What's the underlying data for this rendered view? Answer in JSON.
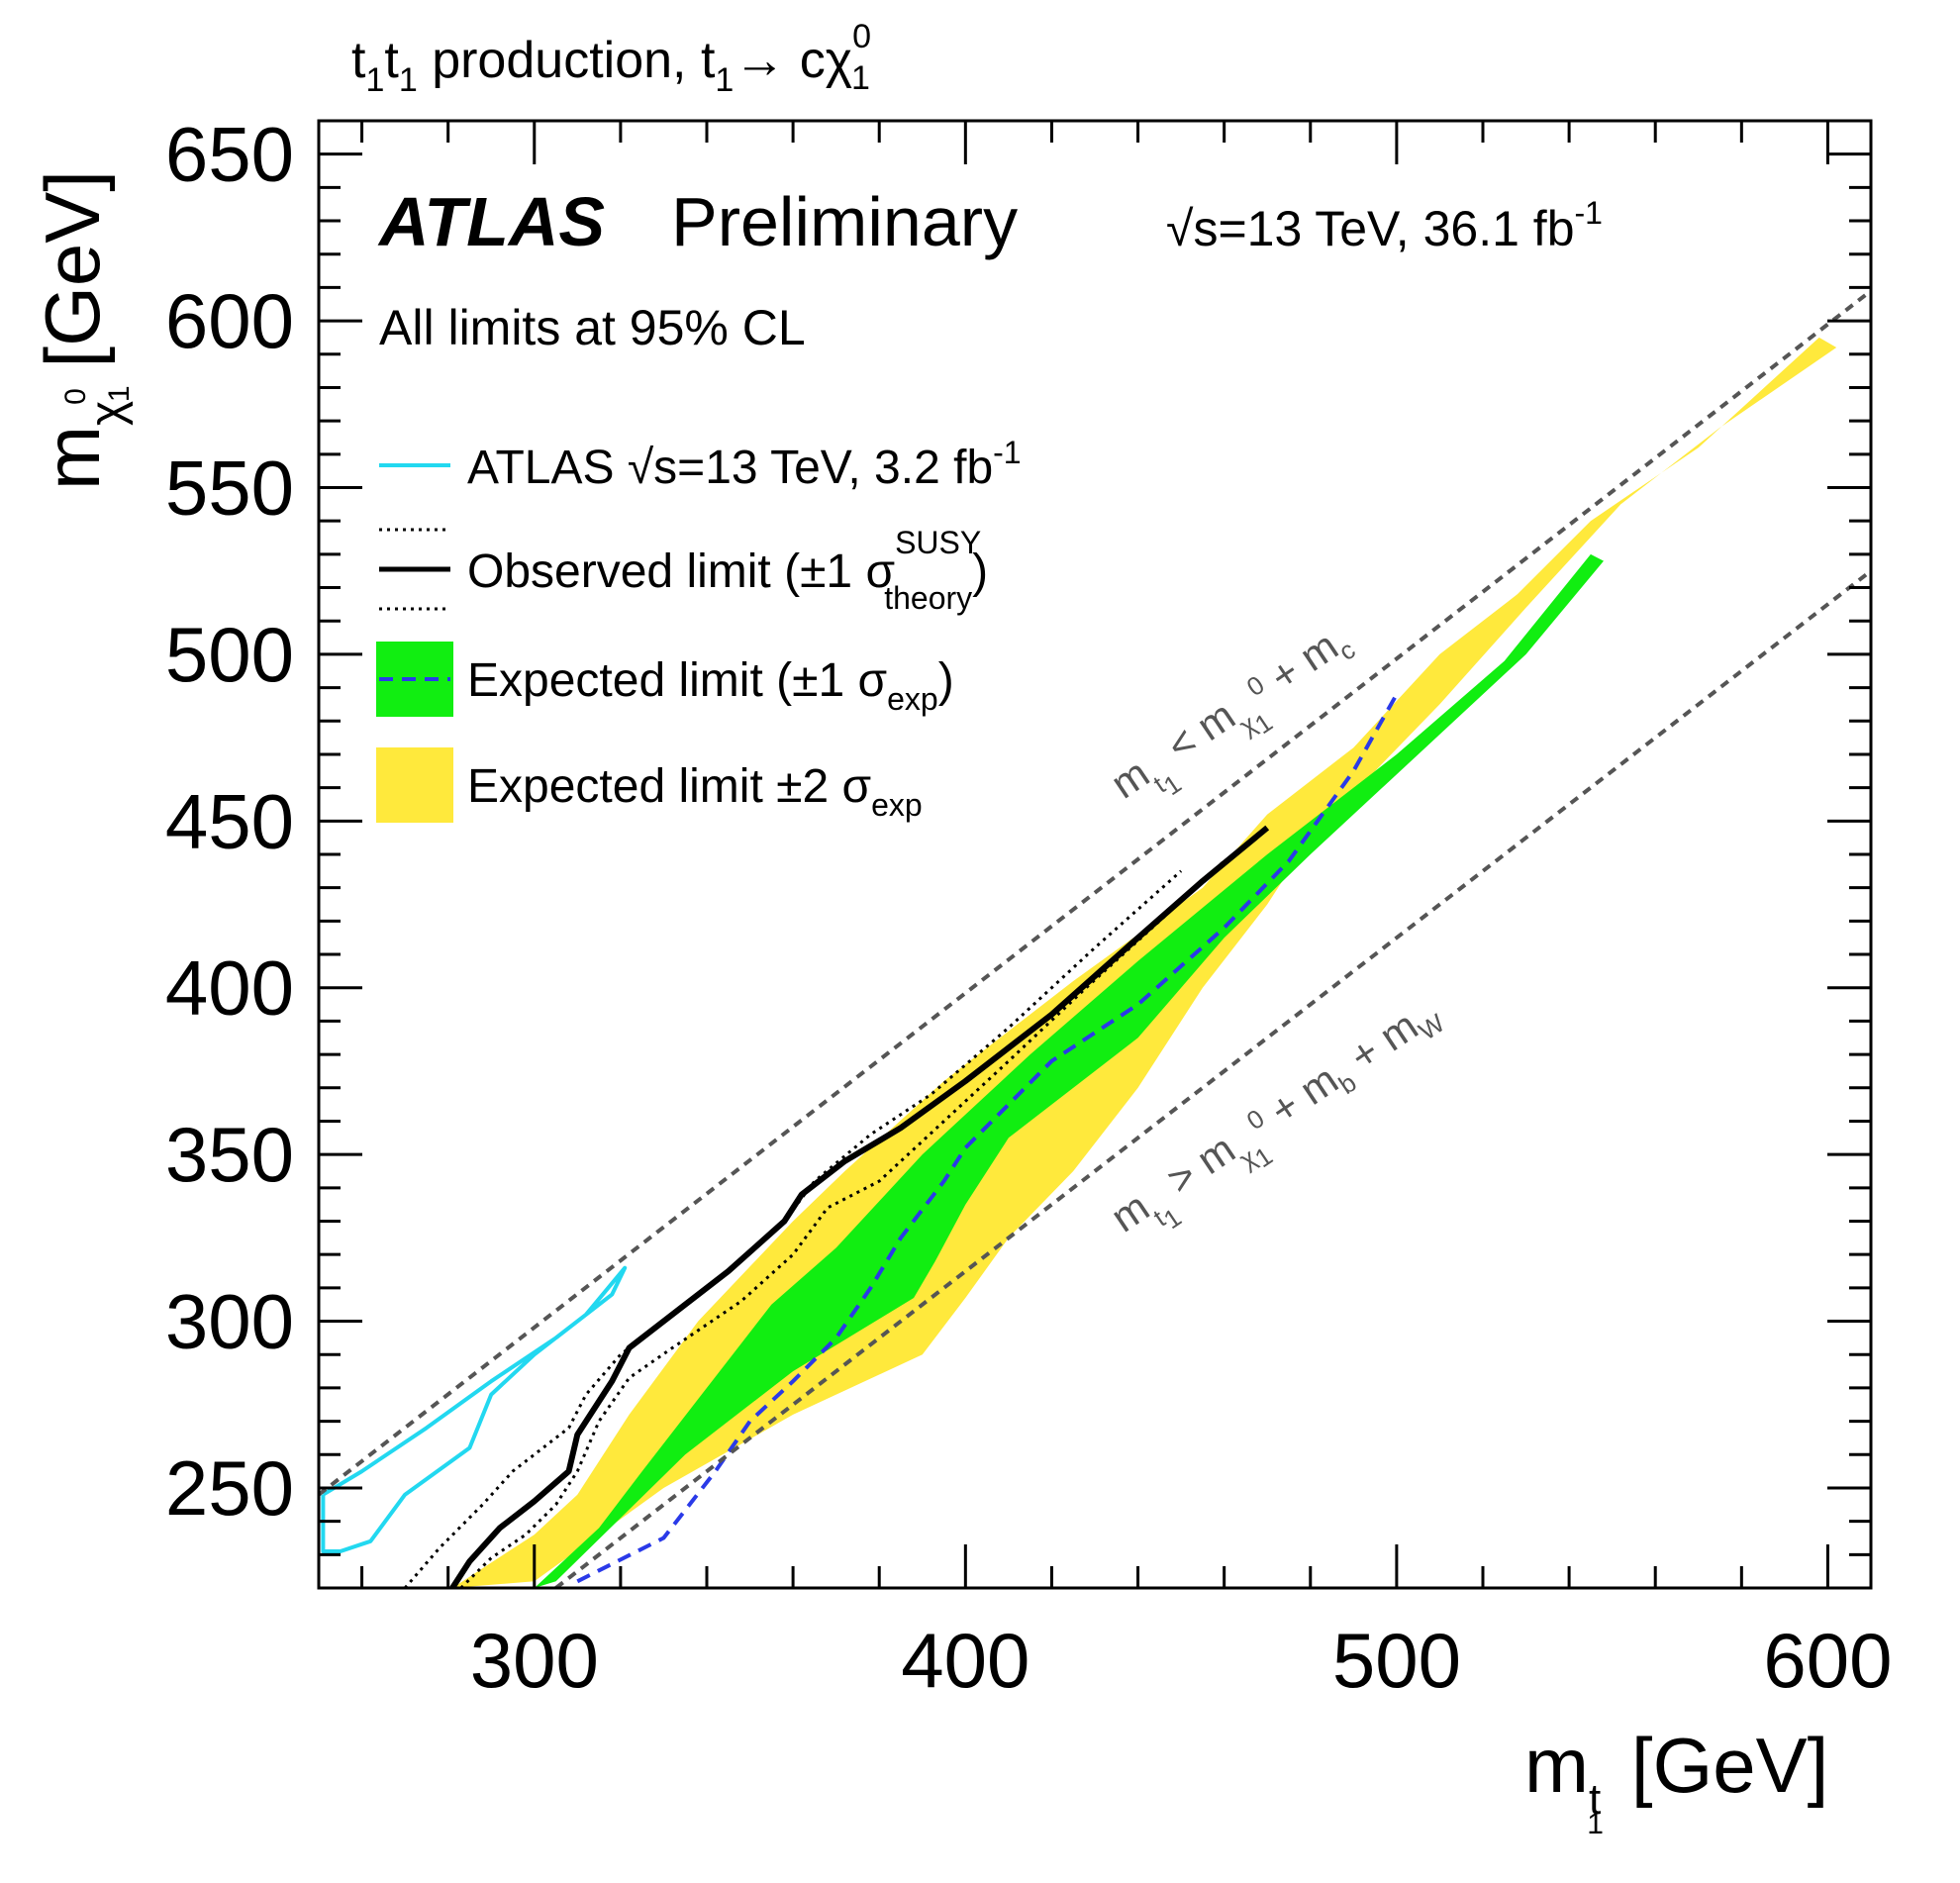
{
  "header": {
    "title_a": "t",
    "title_b": "1",
    "title_c": "t",
    "title_d": "1",
    "title_e": " production, ",
    "title_f": "t",
    "title_g": "1",
    "title_h": "→ c",
    "title_i": "χ",
    "title_j": "0",
    "title_k": "1"
  },
  "labels": {
    "atlas": "ATLAS",
    "preliminary": "Preliminary",
    "energy_a": "√s=13 TeV, 36.1 fb",
    "energy_b": "-1",
    "cl": "All limits at 95% CL",
    "x_m": "m",
    "x_sub": "t",
    "x_sub2": "1",
    "x_unit": "[GeV]",
    "y_m": "m",
    "y_sub": "χ",
    "y_sub2": "1",
    "y_sup": "0",
    "y_unit": "[GeV]"
  },
  "legend": {
    "atlas_prev_a": "ATLAS √s=13 TeV, 3.2 fb",
    "atlas_prev_b": "-1",
    "observed_a": "Observed limit (±1 σ",
    "observed_sup": "SUSY",
    "observed_sub": "theory",
    "observed_b": ")",
    "expected_a": "Expected limit (±1 σ",
    "expected_sub": "exp",
    "expected_b": ")",
    "expected2_a": "Expected limit ±2 σ",
    "expected2_sub": "exp"
  },
  "annotations": {
    "upper_a": "m",
    "upper_b": "t",
    "upper_c": "1",
    "upper_d": " < m",
    "upper_e": "χ",
    "upper_f": "1",
    "upper_g": "0",
    "upper_h": " + m",
    "upper_i": "c",
    "lower_a": "m",
    "lower_b": "t",
    "lower_c": "1",
    "lower_d": " > m",
    "lower_e": "χ",
    "lower_f": "1",
    "lower_g": "0",
    "lower_h": " + m",
    "lower_i": "b",
    "lower_j": " + m",
    "lower_k": "W"
  },
  "colors": {
    "cyan": "#22d8f0",
    "green": "#11ee11",
    "yellow": "#ffe93c",
    "expected_line": "#2a3ae8",
    "kinematic_line": "#555555",
    "text": "#000000"
  },
  "chart_data": {
    "type": "line",
    "xlabel": "m_t1 [GeV]",
    "ylabel": "m_chi1^0 [GeV]",
    "xlim": [
      250,
      610
    ],
    "ylim": [
      220,
      660
    ],
    "xticks": [
      300,
      400,
      500,
      600
    ],
    "yticks": [
      250,
      300,
      350,
      400,
      450,
      500,
      550,
      600,
      650
    ],
    "yellow_band": [
      [
        281,
        220
      ],
      [
        300,
        236
      ],
      [
        310,
        248
      ],
      [
        322,
        272
      ],
      [
        338,
        300
      ],
      [
        360,
        330
      ],
      [
        372,
        345
      ],
      [
        395,
        372
      ],
      [
        425,
        402
      ],
      [
        455,
        430
      ],
      [
        470,
        452
      ],
      [
        490,
        472
      ],
      [
        510,
        500
      ],
      [
        528,
        518
      ],
      [
        545,
        540
      ],
      [
        570,
        562
      ],
      [
        598,
        595
      ],
      [
        602,
        592
      ],
      [
        575,
        568
      ],
      [
        552,
        545
      ],
      [
        530,
        514
      ],
      [
        510,
        485
      ],
      [
        480,
        445
      ],
      [
        470,
        425
      ],
      [
        455,
        400
      ],
      [
        440,
        370
      ],
      [
        425,
        345
      ],
      [
        410,
        325
      ],
      [
        400,
        307
      ],
      [
        390,
        290
      ],
      [
        360,
        272
      ],
      [
        330,
        250
      ],
      [
        300,
        222
      ]
    ],
    "green_band": [
      [
        300,
        220
      ],
      [
        315,
        238
      ],
      [
        325,
        255
      ],
      [
        340,
        280
      ],
      [
        355,
        305
      ],
      [
        370,
        322
      ],
      [
        390,
        350
      ],
      [
        415,
        380
      ],
      [
        440,
        408
      ],
      [
        470,
        440
      ],
      [
        500,
        470
      ],
      [
        525,
        498
      ],
      [
        545,
        530
      ],
      [
        548,
        528
      ],
      [
        530,
        500
      ],
      [
        505,
        470
      ],
      [
        480,
        440
      ],
      [
        460,
        415
      ],
      [
        440,
        385
      ],
      [
        410,
        355
      ],
      [
        400,
        335
      ],
      [
        393,
        318
      ],
      [
        388,
        307
      ],
      [
        360,
        285
      ],
      [
        335,
        260
      ],
      [
        305,
        222
      ]
    ],
    "series": [
      {
        "name": "ATLAS √s=13 TeV, 3.2 fb-1",
        "points": [
          [
            251,
            248
          ],
          [
            260,
            255
          ],
          [
            275,
            268
          ],
          [
            290,
            282
          ],
          [
            305,
            295
          ],
          [
            318,
            308
          ],
          [
            321,
            316
          ],
          [
            312,
            302
          ],
          [
            300,
            290
          ],
          [
            290,
            278
          ],
          [
            285,
            262
          ],
          [
            270,
            248
          ],
          [
            262,
            234
          ],
          [
            255,
            231
          ],
          [
            251,
            231
          ],
          [
            251,
            248
          ]
        ]
      },
      {
        "name": "Observed limit",
        "points": [
          [
            281,
            220
          ],
          [
            285,
            228
          ],
          [
            292,
            238
          ],
          [
            300,
            246
          ],
          [
            308,
            255
          ],
          [
            310,
            266
          ],
          [
            318,
            282
          ],
          [
            322,
            292
          ],
          [
            332,
            302
          ],
          [
            345,
            315
          ],
          [
            358,
            330
          ],
          [
            362,
            338
          ],
          [
            372,
            348
          ],
          [
            385,
            358
          ],
          [
            400,
            372
          ],
          [
            420,
            392
          ],
          [
            440,
            415
          ],
          [
            455,
            432
          ],
          [
            470,
            448
          ]
        ]
      },
      {
        "name": "Observed +1σ",
        "points": [
          [
            270,
            220
          ],
          [
            278,
            232
          ],
          [
            288,
            245
          ],
          [
            295,
            255
          ],
          [
            308,
            268
          ],
          [
            312,
            278
          ],
          [
            320,
            290
          ],
          [
            330,
            300
          ],
          [
            345,
            315
          ],
          [
            358,
            330
          ],
          [
            365,
            342
          ],
          [
            378,
            356
          ],
          [
            392,
            368
          ],
          [
            410,
            388
          ],
          [
            430,
            412
          ],
          [
            450,
            435
          ]
        ]
      },
      {
        "name": "Observed -1σ",
        "points": [
          [
            283,
            220
          ],
          [
            290,
            229
          ],
          [
            298,
            236
          ],
          [
            305,
            245
          ],
          [
            310,
            255
          ],
          [
            315,
            270
          ],
          [
            322,
            283
          ],
          [
            332,
            292
          ],
          [
            348,
            306
          ],
          [
            360,
            320
          ],
          [
            368,
            334
          ],
          [
            380,
            342
          ],
          [
            395,
            360
          ],
          [
            410,
            378
          ],
          [
            428,
            400
          ],
          [
            445,
            420
          ],
          [
            460,
            438
          ]
        ]
      },
      {
        "name": "Expected limit",
        "points": [
          [
            310,
            222
          ],
          [
            330,
            235
          ],
          [
            342,
            255
          ],
          [
            350,
            270
          ],
          [
            360,
            282
          ],
          [
            370,
            295
          ],
          [
            378,
            310
          ],
          [
            385,
            325
          ],
          [
            395,
            342
          ],
          [
            400,
            352
          ],
          [
            410,
            365
          ],
          [
            420,
            378
          ],
          [
            440,
            395
          ],
          [
            460,
            418
          ],
          [
            475,
            438
          ],
          [
            490,
            465
          ],
          [
            500,
            488
          ]
        ]
      },
      {
        "name": "m_t1 < m_chi1 + m_c",
        "points": [
          [
            250,
            248
          ],
          [
            610,
            609
          ]
        ]
      },
      {
        "name": "m_t1 > m_chi1 + m_b + m_W",
        "points": [
          [
            305,
            220
          ],
          [
            610,
            525
          ]
        ]
      }
    ]
  }
}
